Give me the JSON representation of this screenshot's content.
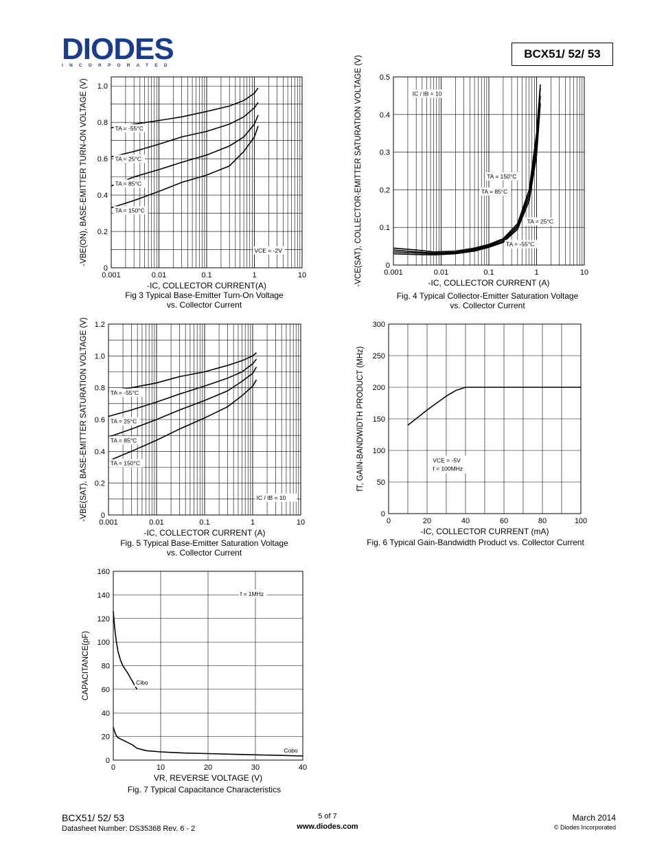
{
  "header": {
    "logo_main": "DIODES",
    "logo_sub": "INCORPORATED",
    "part_number": "BCX51/ 52/ 53"
  },
  "charts": [
    {
      "id": "fig3",
      "type": "line",
      "caption_line1": "Fig 3 Typical Base-Emitter Turn-On Voltage",
      "caption_line2": "vs. Collector Current",
      "xlabel": "-IC, COLLECTOR CURRENT(A)",
      "ylabel": "-VBE(ON), BASE-EMITTER TURN-ON VOLTAGE (V)",
      "xscale": "log",
      "xlim": [
        0.001,
        10
      ],
      "ylim": [
        0,
        1.05
      ],
      "xticks": [
        "0.001",
        "0.01",
        "0.1",
        "1",
        "10"
      ],
      "yticks": [
        "0",
        "0.2",
        "0.4",
        "0.6",
        "0.8",
        "1.0"
      ],
      "annotation": "VCE = -2V",
      "series": [
        {
          "name": "TA = -55°C",
          "x": [
            0.001,
            0.003,
            0.01,
            0.03,
            0.1,
            0.3,
            0.6,
            1.0,
            1.2
          ],
          "y": [
            0.77,
            0.79,
            0.81,
            0.83,
            0.86,
            0.89,
            0.92,
            0.96,
            0.99
          ]
        },
        {
          "name": "TA = 25°C",
          "x": [
            0.001,
            0.003,
            0.01,
            0.03,
            0.1,
            0.3,
            0.6,
            1.0,
            1.2
          ],
          "y": [
            0.61,
            0.64,
            0.68,
            0.72,
            0.75,
            0.79,
            0.83,
            0.88,
            0.91
          ]
        },
        {
          "name": "TA = 85°C",
          "x": [
            0.001,
            0.003,
            0.01,
            0.03,
            0.1,
            0.3,
            0.6,
            1.0,
            1.2
          ],
          "y": [
            0.45,
            0.5,
            0.54,
            0.58,
            0.62,
            0.67,
            0.72,
            0.79,
            0.84
          ]
        },
        {
          "name": "TA = 150°C",
          "x": [
            0.001,
            0.003,
            0.01,
            0.03,
            0.1,
            0.3,
            0.6,
            1.0,
            1.2
          ],
          "y": [
            0.33,
            0.37,
            0.42,
            0.47,
            0.51,
            0.56,
            0.64,
            0.72,
            0.78
          ]
        }
      ]
    },
    {
      "id": "fig4",
      "type": "line",
      "caption_line1": "Fig. 4 Typical Collector-Emitter Saturation Voltage",
      "caption_line2": "vs. Collector Current",
      "xlabel": "-IC, COLLECTOR CURRENT (A)",
      "ylabel": "-VCE(SAT), COLLECTOR-EMITTER SATURATION VOLTAGE (V)",
      "xscale": "log",
      "xlim": [
        0.001,
        10
      ],
      "ylim": [
        0,
        0.5
      ],
      "xticks": [
        "0.001",
        "0.01",
        "0.1",
        "1",
        "10"
      ],
      "yticks": [
        "0",
        "0.1",
        "0.2",
        "0.3",
        "0.4",
        "0.5"
      ],
      "annotation": "IC / IB = 10",
      "series": [
        {
          "name": "TA = 150°C",
          "x": [
            0.001,
            0.003,
            0.007,
            0.02,
            0.05,
            0.1,
            0.2,
            0.4,
            0.7,
            1.0,
            1.2
          ],
          "y": [
            0.045,
            0.04,
            0.035,
            0.037,
            0.045,
            0.055,
            0.07,
            0.11,
            0.2,
            0.35,
            0.48
          ]
        },
        {
          "name": "TA = 85°C",
          "x": [
            0.001,
            0.003,
            0.007,
            0.02,
            0.05,
            0.1,
            0.2,
            0.4,
            0.7,
            1.0,
            1.2
          ],
          "y": [
            0.04,
            0.035,
            0.032,
            0.034,
            0.042,
            0.052,
            0.067,
            0.105,
            0.19,
            0.33,
            0.47
          ]
        },
        {
          "name": "TA = 25°C",
          "x": [
            0.001,
            0.003,
            0.007,
            0.02,
            0.05,
            0.1,
            0.2,
            0.4,
            0.7,
            1.0,
            1.2
          ],
          "y": [
            0.035,
            0.032,
            0.03,
            0.032,
            0.04,
            0.05,
            0.063,
            0.1,
            0.18,
            0.31,
            0.45
          ]
        },
        {
          "name": "TA = -55°C",
          "x": [
            0.001,
            0.003,
            0.007,
            0.02,
            0.05,
            0.1,
            0.2,
            0.4,
            0.7,
            1.0,
            1.2
          ],
          "y": [
            0.03,
            0.028,
            0.027,
            0.03,
            0.037,
            0.047,
            0.06,
            0.095,
            0.17,
            0.29,
            0.43
          ]
        }
      ]
    },
    {
      "id": "fig5",
      "type": "line",
      "caption_line1": "Fig. 5 Typical Base-Emitter Saturation Voltage",
      "caption_line2": "vs. Collector Current",
      "xlabel": "-IC, COLLECTOR CURRENT (A)",
      "ylabel": "-VBE(SAT), BASE-EMITTER SATURATION VOLTAGE (V)",
      "xscale": "log",
      "xlim": [
        0.001,
        10
      ],
      "ylim": [
        0,
        1.2
      ],
      "xticks": [
        "0.001",
        "0.01",
        "0.1",
        "1",
        "10"
      ],
      "yticks": [
        "0",
        "0.2",
        "0.4",
        "0.6",
        "0.8",
        "1.0",
        "1.2"
      ],
      "annotation": "IC / IB = 10",
      "series": [
        {
          "name": "TA = -55°C",
          "x": [
            0.001,
            0.003,
            0.01,
            0.03,
            0.1,
            0.3,
            0.6,
            1.0,
            1.2
          ],
          "y": [
            0.78,
            0.8,
            0.83,
            0.87,
            0.9,
            0.94,
            0.97,
            1.0,
            1.02
          ]
        },
        {
          "name": "TA = 25°C",
          "x": [
            0.001,
            0.003,
            0.01,
            0.03,
            0.1,
            0.3,
            0.6,
            1.0,
            1.2
          ],
          "y": [
            0.62,
            0.66,
            0.71,
            0.76,
            0.81,
            0.86,
            0.9,
            0.95,
            0.98
          ]
        },
        {
          "name": "TA = 85°C",
          "x": [
            0.001,
            0.003,
            0.01,
            0.03,
            0.1,
            0.3,
            0.6,
            1.0,
            1.2
          ],
          "y": [
            0.49,
            0.54,
            0.6,
            0.66,
            0.72,
            0.78,
            0.84,
            0.89,
            0.93
          ]
        },
        {
          "name": "TA = 150°C",
          "x": [
            0.001,
            0.003,
            0.01,
            0.03,
            0.1,
            0.3,
            0.6,
            1.0,
            1.2
          ],
          "y": [
            0.34,
            0.4,
            0.47,
            0.54,
            0.61,
            0.68,
            0.75,
            0.81,
            0.85
          ]
        }
      ]
    },
    {
      "id": "fig6",
      "type": "line",
      "caption_line1": "Fig. 6 Typical Gain-Bandwidth Product vs. Collector Current",
      "caption_line2": "",
      "xlabel": "-IC, COLLECTOR CURRENT (mA)",
      "ylabel": "fT, GAIN-BANDWIDTH PRODUCT (MHz)",
      "xscale": "linear",
      "xlim": [
        0,
        100
      ],
      "ylim": [
        0,
        300
      ],
      "xticks": [
        "0",
        "20",
        "40",
        "60",
        "80",
        "100"
      ],
      "yticks": [
        "0",
        "50",
        "100",
        "150",
        "200",
        "250",
        "300"
      ],
      "annotation_line1": "VCE = -5V",
      "annotation_line2": "f = 100MHz",
      "series": [
        {
          "name": "",
          "x": [
            10,
            15,
            20,
            25,
            30,
            35,
            40,
            45,
            50,
            60,
            70,
            80,
            90,
            100
          ],
          "y": [
            140,
            152,
            164,
            175,
            186,
            195,
            200,
            200,
            200,
            200,
            200,
            200,
            200,
            200
          ]
        }
      ]
    },
    {
      "id": "fig7",
      "type": "line",
      "caption_line1": "Fig. 7 Typical Capacitance Characteristics",
      "caption_line2": "",
      "xlabel": "VR, REVERSE VOLTAGE (V)",
      "ylabel": "CAPACITANCE(pF)",
      "xscale": "linear",
      "xlim": [
        0,
        40
      ],
      "ylim": [
        0,
        160
      ],
      "xticks": [
        "0",
        "10",
        "20",
        "30",
        "40"
      ],
      "yticks": [
        "0",
        "20",
        "40",
        "60",
        "80",
        "100",
        "120",
        "140",
        "160"
      ],
      "annotation": "f = 1MHz",
      "series": [
        {
          "name": "Cibo",
          "x": [
            0,
            0.3,
            0.6,
            1,
            1.5,
            2,
            3,
            4,
            5
          ],
          "y": [
            126,
            112,
            102,
            92,
            85,
            80,
            74,
            67,
            60
          ]
        },
        {
          "name": "Cobo",
          "x": [
            0,
            0.3,
            0.6,
            1,
            2,
            3,
            4,
            5,
            7,
            10,
            15,
            20,
            25,
            30,
            35,
            40
          ],
          "y": [
            28,
            24,
            21,
            19,
            17,
            15,
            13,
            10,
            8,
            7,
            6,
            5.5,
            5,
            4.5,
            4,
            3.5
          ]
        }
      ]
    }
  ],
  "footer": {
    "part": "BCX51/ 52/ 53",
    "datasheet": "Datasheet Number: DS35368 Rev. 6 - 2",
    "page": "5 of 7",
    "website": "www.diodes.com",
    "date": "March 2014",
    "copyright": "© Diodes Incorporated"
  }
}
